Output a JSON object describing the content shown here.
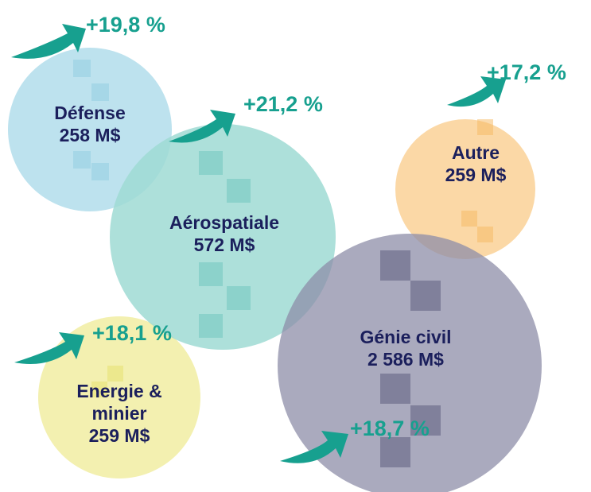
{
  "bubbles": [
    {
      "label": [
        "Défense"
      ],
      "amount": "258 M$",
      "growth": "+19,8 %"
    },
    {
      "label": [
        "Aérospatiale"
      ],
      "amount": "572 M$",
      "growth": "+21,2 %"
    },
    {
      "label": [
        "Autre"
      ],
      "amount": "259 M$",
      "growth": "+17,2 %"
    },
    {
      "label": [
        "Génie civil"
      ],
      "amount": "2 586 M$",
      "growth": "+18,7 %"
    },
    {
      "label": [
        "Energie &",
        "minier"
      ],
      "amount": "259 M$",
      "growth": "+18,1 %"
    }
  ]
}
